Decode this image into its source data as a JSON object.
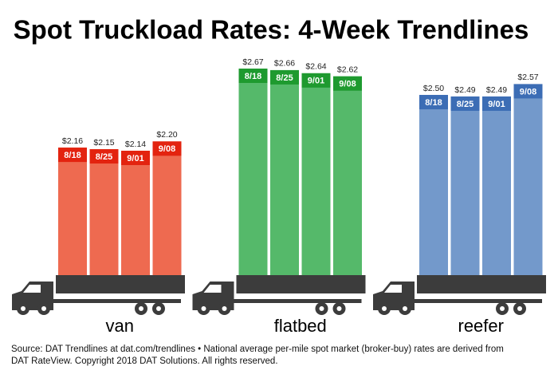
{
  "title": "Spot Truckload Rates: 4-Week Trendlines",
  "source": [
    "Source: DAT Trendlines at dat.com/trendlines • National average per-mile spot market (broker-buy) rates are derived from",
    "DAT RateView. Copyright 2018 DAT Solutions. All rights reserved."
  ],
  "chart_data": [
    {
      "type": "bar",
      "title": "van",
      "categories": [
        "8/18",
        "8/25",
        "9/01",
        "9/08"
      ],
      "values": [
        2.16,
        2.15,
        2.14,
        2.2
      ],
      "value_labels": [
        "$2.16",
        "$2.15",
        "$2.14",
        "$2.20"
      ],
      "color": "#ee6a50",
      "header_color": "#e3230f"
    },
    {
      "type": "bar",
      "title": "flatbed",
      "categories": [
        "8/18",
        "8/25",
        "9/01",
        "9/08"
      ],
      "values": [
        2.67,
        2.66,
        2.64,
        2.62
      ],
      "value_labels": [
        "$2.67",
        "$2.66",
        "$2.64",
        "$2.62"
      ],
      "color": "#55b96a",
      "header_color": "#1e9a2f"
    },
    {
      "type": "bar",
      "title": "reefer",
      "categories": [
        "8/18",
        "8/25",
        "9/01",
        "9/08"
      ],
      "values": [
        2.5,
        2.49,
        2.49,
        2.57
      ],
      "value_labels": [
        "$2.50",
        "$2.49",
        "$2.49",
        "$2.57"
      ],
      "color": "#7399cb",
      "header_color": "#3c6db5"
    }
  ]
}
